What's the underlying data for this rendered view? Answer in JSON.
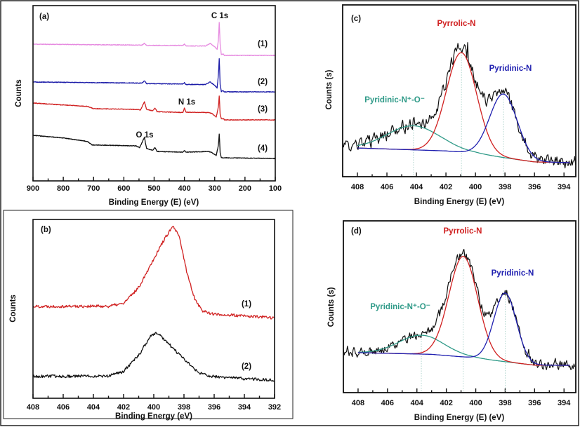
{
  "colors": {
    "pink": "#e68ae0",
    "blue": "#1c1ca8",
    "red": "#d02020",
    "black": "#111111",
    "teal": "#2f9a88",
    "fit_blue": "#2020b0",
    "guide": "#9cc9c0"
  },
  "chart_data": [
    {
      "panel": "(a)",
      "type": "line",
      "xlabel": "Binding Energy (E) (eV)",
      "ylabel": "Counts",
      "xlim": [
        900,
        100
      ],
      "ylim": [
        0,
        100
      ],
      "y_units": "arbitrary",
      "xticks": [
        900,
        800,
        700,
        600,
        500,
        400,
        300,
        200,
        100
      ],
      "grid": false,
      "annotations": [
        {
          "text": "C 1s"
        },
        {
          "text": "N 1s"
        },
        {
          "text": "O 1s"
        }
      ],
      "series": [
        {
          "name": "(1)",
          "color": "#e68ae0",
          "points": [
            [
              900,
              78
            ],
            [
              560,
              77.5
            ],
            [
              540,
              77.5
            ],
            [
              532,
              78.6
            ],
            [
              525,
              77.3
            ],
            [
              405,
              77.3
            ],
            [
              400,
              78
            ],
            [
              395,
              77
            ],
            [
              330,
              77
            ],
            [
              315,
              78.5
            ],
            [
              300,
              76.5
            ],
            [
              292,
              75
            ],
            [
              288,
              80
            ],
            [
              285,
              90.4
            ],
            [
              282,
              78
            ],
            [
              278,
              72
            ],
            [
              272,
              72.5
            ],
            [
              268,
              71.6
            ],
            [
              100,
              71.6
            ]
          ]
        },
        {
          "name": "(2)",
          "color": "#1c1ca8",
          "points": [
            [
              900,
              56.4
            ],
            [
              540,
              55.8
            ],
            [
              532,
              57
            ],
            [
              525,
              55.5
            ],
            [
              405,
              55.3
            ],
            [
              400,
              56
            ],
            [
              395,
              55
            ],
            [
              330,
              55
            ],
            [
              315,
              56.5
            ],
            [
              300,
              54.5
            ],
            [
              292,
              53
            ],
            [
              288,
              60
            ],
            [
              285,
              69.6
            ],
            [
              282,
              55
            ],
            [
              278,
              51
            ],
            [
              272,
              51.5
            ],
            [
              268,
              50.8
            ],
            [
              100,
              50.8
            ]
          ]
        },
        {
          "name": "(3)",
          "color": "#d02020",
          "points": [
            [
              900,
              44.4
            ],
            [
              720,
              42.5
            ],
            [
              700,
              41.2
            ],
            [
              560,
              40.8
            ],
            [
              545,
              40.5
            ],
            [
              532,
              45.2
            ],
            [
              525,
              40.8
            ],
            [
              505,
              40
            ],
            [
              497,
              41.5
            ],
            [
              490,
              39.5
            ],
            [
              405,
              39
            ],
            [
              400,
              41.5
            ],
            [
              395,
              39.2
            ],
            [
              320,
              39
            ],
            [
              310,
              38.5
            ],
            [
              295,
              36.5
            ],
            [
              288,
              42
            ],
            [
              285,
              48.4
            ],
            [
              282,
              38
            ],
            [
              278,
              35.5
            ],
            [
              270,
              35.5
            ],
            [
              268,
              34.8
            ],
            [
              100,
              34.8
            ]
          ]
        },
        {
          "name": "(4)",
          "color": "#111111",
          "points": [
            [
              900,
              26
            ],
            [
              800,
              24.5
            ],
            [
              720,
              22.5
            ],
            [
              705,
              20.5
            ],
            [
              560,
              20
            ],
            [
              548,
              19
            ],
            [
              532,
              24.8
            ],
            [
              525,
              18.5
            ],
            [
              505,
              17.5
            ],
            [
              497,
              19
            ],
            [
              490,
              16.8
            ],
            [
              405,
              16.4
            ],
            [
              400,
              17.4
            ],
            [
              395,
              16.4
            ],
            [
              320,
              16.8
            ],
            [
              310,
              16.2
            ],
            [
              295,
              14.5
            ],
            [
              288,
              20
            ],
            [
              285,
              26.8
            ],
            [
              282,
              16
            ],
            [
              278,
              13.2
            ],
            [
              100,
              12.8
            ]
          ]
        }
      ]
    },
    {
      "panel": "(b)",
      "type": "line",
      "xlabel": "Binding Energy (eV)",
      "ylabel": "Counts",
      "xlim": [
        408,
        392
      ],
      "ylim": [
        0,
        100
      ],
      "y_units": "arbitrary",
      "xticks": [
        408,
        406,
        404,
        402,
        400,
        398,
        396,
        394,
        392
      ],
      "grid": false,
      "series": [
        {
          "name": "(1)",
          "color": "#d02020",
          "points": [
            [
              408,
              51.4
            ],
            [
              403,
              51.5
            ],
            [
              402,
              53
            ],
            [
              401,
              62
            ],
            [
              400,
              78
            ],
            [
              399.5,
              86
            ],
            [
              399,
              93
            ],
            [
              398.7,
              96
            ],
            [
              398.3,
              90
            ],
            [
              397.8,
              70
            ],
            [
              397.3,
              56
            ],
            [
              396.8,
              49
            ],
            [
              396,
              47
            ],
            [
              392,
              45
            ]
          ]
        },
        {
          "name": "(2)",
          "color": "#111111",
          "points": [
            [
              408,
              12.2
            ],
            [
              403,
              12.5
            ],
            [
              402,
              15
            ],
            [
              401,
              24
            ],
            [
              400.2,
              35
            ],
            [
              399.8,
              36.5
            ],
            [
              399.3,
              33
            ],
            [
              398.5,
              26
            ],
            [
              397.5,
              18
            ],
            [
              397,
              14
            ],
            [
              396,
              12
            ],
            [
              392,
              10
            ]
          ]
        }
      ]
    },
    {
      "panel": "(c)",
      "type": "line",
      "xlabel": "Binding Energy (E) (eV)",
      "ylabel": "Counts (s)",
      "xlim": [
        409,
        393.2
      ],
      "ylim": [
        0,
        100
      ],
      "y_units": "arbitrary",
      "xticks": [
        408,
        406,
        404,
        402,
        400,
        398,
        396,
        394
      ],
      "grid": false,
      "background": [
        [
          408,
          16.7
        ],
        [
          402,
          15
        ],
        [
          400,
          13.5
        ],
        [
          398,
          11
        ],
        [
          396,
          8.6
        ],
        [
          393.6,
          8.2
        ]
      ],
      "fit_range": [
        408,
        393.6
      ],
      "components": [
        {
          "name": "Pyridinic-N⁺-O⁻",
          "color": "#2f9a88",
          "center": 404.2,
          "fwhm": 4.2,
          "amplitude": 14
        },
        {
          "name": "Pyrrolic-N",
          "color": "#d02020",
          "center": 400.95,
          "fwhm": 2.4,
          "amplitude": 58
        },
        {
          "name": "Pyridinic-N",
          "color": "#2020b0",
          "center": 398.1,
          "fwhm": 2.2,
          "amplitude": 37
        }
      ],
      "measured_noise": 3.2
    },
    {
      "panel": "(d)",
      "type": "line",
      "xlabel": "Binding Energy (E) (eV)",
      "ylabel": "Counts (s)",
      "xlim": [
        409,
        393.2
      ],
      "ylim": [
        0,
        100
      ],
      "y_units": "arbitrary",
      "xticks": [
        408,
        406,
        404,
        402,
        400,
        398,
        396,
        394
      ],
      "grid": false,
      "background": [
        [
          408,
          23.3
        ],
        [
          403,
          22.3
        ],
        [
          400.3,
          20.4
        ],
        [
          398,
          18
        ],
        [
          396,
          16
        ],
        [
          393.6,
          15.9
        ]
      ],
      "fit_range": [
        408,
        393.6
      ],
      "components": [
        {
          "name": "Pyridinic-N⁺-O⁻",
          "color": "#2f9a88",
          "center": 403.7,
          "fwhm": 3.6,
          "amplitude": 11
        },
        {
          "name": "Pyrrolic-N",
          "color": "#d02020",
          "center": 400.85,
          "fwhm": 2.3,
          "amplitude": 58.5
        },
        {
          "name": "Pyridinic-N",
          "color": "#2020b0",
          "center": 398.0,
          "fwhm": 1.8,
          "amplitude": 40
        }
      ],
      "measured_noise": 2.4
    }
  ]
}
